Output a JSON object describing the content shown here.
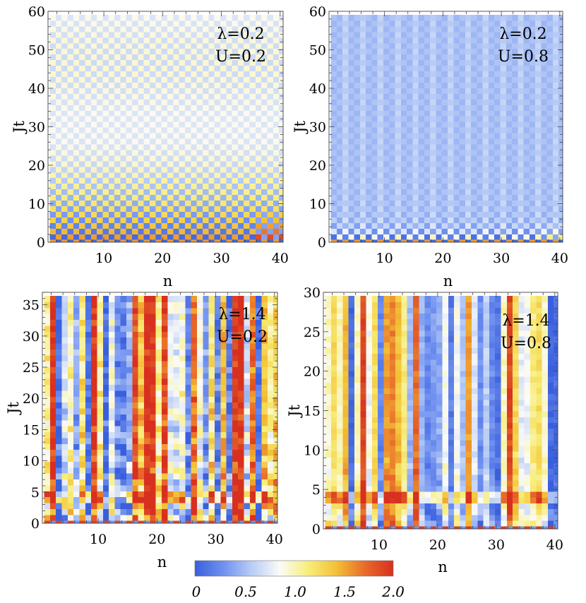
{
  "colorbar": {
    "stops": [
      "#3a5fdc",
      "#6f90f0",
      "#b8ccf6",
      "#fbfbf7",
      "#f7ee7a",
      "#f3c035",
      "#e86a2a",
      "#d7301f"
    ],
    "range": [
      0,
      2.0
    ],
    "tick_labels": [
      "0",
      "0.5",
      "1.0",
      "1.5",
      "2.0"
    ]
  },
  "chart_data": [
    {
      "type": "heatmap",
      "panel": "top-left",
      "xlabel": "n",
      "ylabel": "Jt",
      "xlim": [
        0.5,
        40.5
      ],
      "ylim": [
        0,
        60
      ],
      "xticks": [
        10,
        20,
        30,
        40
      ],
      "yticks": [
        0,
        10,
        20,
        30,
        40,
        50,
        60
      ],
      "annotations": [
        "λ=0.2",
        "U=0.2"
      ],
      "regime": "weak checkerboard oscillation",
      "value_range": [
        0,
        2.0
      ]
    },
    {
      "type": "heatmap",
      "panel": "top-right",
      "xlabel": "n",
      "ylabel": "Jt",
      "xlim": [
        0.5,
        40.5
      ],
      "ylim": [
        0,
        60
      ],
      "xticks": [
        10,
        20,
        30,
        40
      ],
      "yticks": [
        0,
        10,
        20,
        30,
        40,
        50,
        60
      ],
      "annotations": [
        "λ=0.2",
        "U=0.8"
      ],
      "regime": "fast relaxation to uniform",
      "value_range": [
        0,
        2.0
      ]
    },
    {
      "type": "heatmap",
      "panel": "bottom-left",
      "xlabel": "n",
      "ylabel": "Jt",
      "xlim": [
        0.5,
        40.5
      ],
      "ylim": [
        0,
        37
      ],
      "xticks": [
        10,
        20,
        30,
        40
      ],
      "yticks": [
        0,
        5,
        10,
        15,
        20,
        25,
        30,
        35
      ],
      "annotations": [
        "λ=1.4",
        "U=0.2"
      ],
      "regime": "localized stripes",
      "value_range": [
        0,
        2.0
      ]
    },
    {
      "type": "heatmap",
      "panel": "bottom-right",
      "xlabel": "n",
      "ylabel": "Jt",
      "xlim": [
        0.5,
        40.5
      ],
      "ylim": [
        0,
        30
      ],
      "xticks": [
        10,
        20,
        30,
        40
      ],
      "yticks": [
        0,
        5,
        10,
        15,
        20,
        25,
        30
      ],
      "annotations": [
        "λ=1.4",
        "U=0.8"
      ],
      "regime": "localized stripes",
      "value_range": [
        0,
        2.0
      ]
    }
  ]
}
